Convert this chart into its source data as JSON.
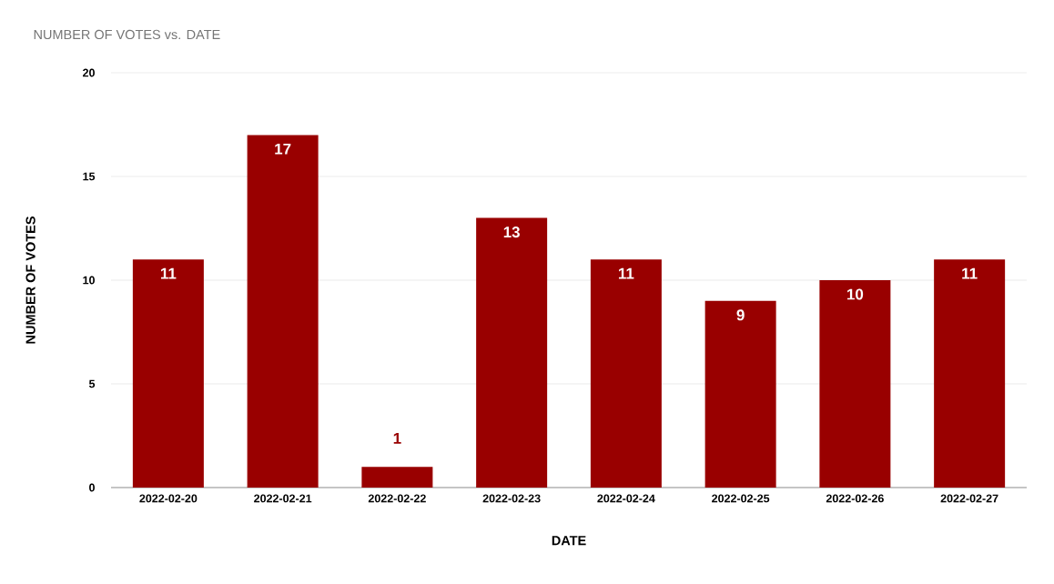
{
  "chart_data": {
    "type": "bar",
    "title": "NUMBER OF VOTES vs. DATE",
    "xlabel": "DATE",
    "ylabel": "NUMBER OF VOTES",
    "categories": [
      "2022-02-20",
      "2022-02-21",
      "2022-02-22",
      "2022-02-23",
      "2022-02-24",
      "2022-02-25",
      "2022-02-26",
      "2022-02-27"
    ],
    "values": [
      11,
      17,
      1,
      13,
      11,
      9,
      10,
      11
    ],
    "color": "#990000",
    "ylim": [
      0,
      20
    ],
    "yticks": [
      0,
      5,
      10,
      15,
      20
    ],
    "grid": "y",
    "data_labels": true
  }
}
